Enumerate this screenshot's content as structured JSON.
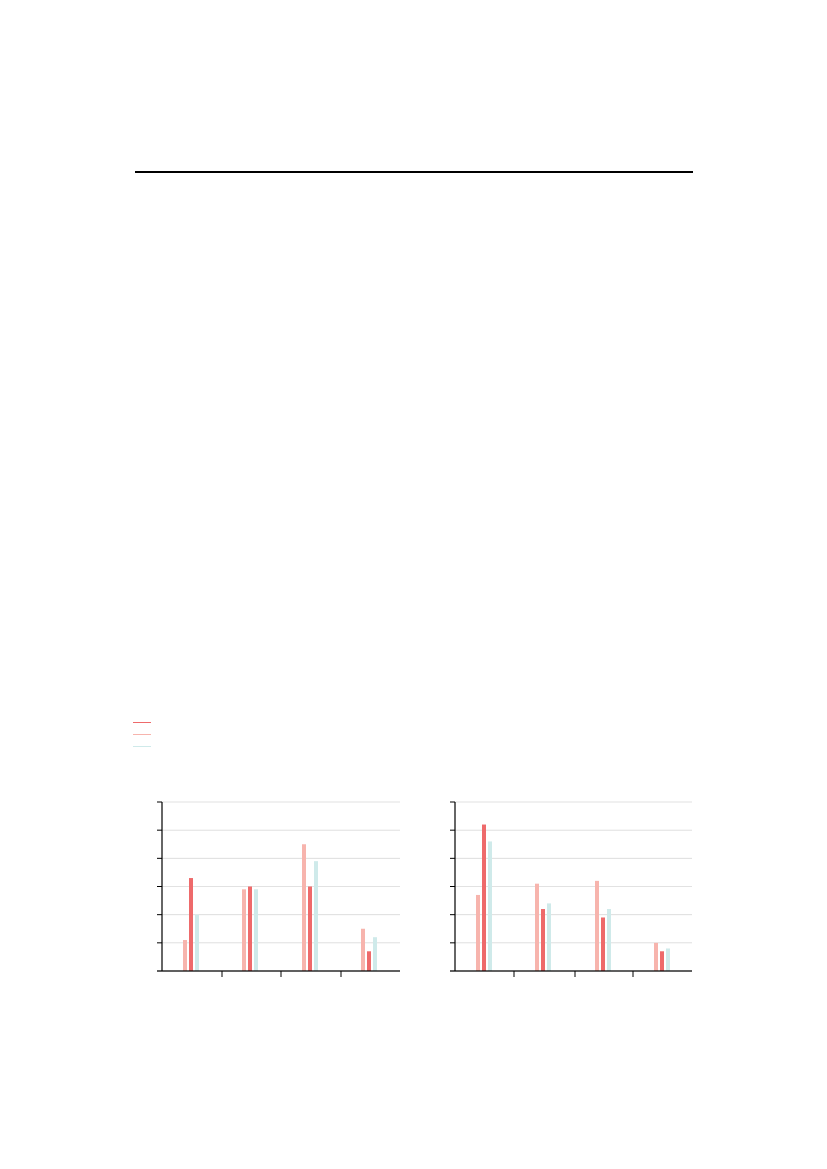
{
  "colors": {
    "series_1": "#ee6a6b",
    "series_2": "#f7b4ad",
    "series_3": "#cfeaea",
    "grid": "#d9d9d9",
    "axis": "#000000"
  },
  "legend": {
    "placement": "top-left",
    "entries": [
      {
        "color": "#ee6a6b"
      },
      {
        "color": "#f7b4ad"
      },
      {
        "color": "#cfeaea"
      }
    ]
  },
  "chart_data": [
    {
      "type": "bar",
      "grid": true,
      "ylim": [
        0,
        6
      ],
      "series": [
        {
          "color": "#f7b4ad",
          "values": [
            1.1,
            2.9,
            4.5,
            1.5
          ]
        },
        {
          "color": "#ee6a6b",
          "values": [
            3.3,
            3.0,
            3.0,
            0.7
          ]
        },
        {
          "color": "#cfeaea",
          "values": [
            2.0,
            2.9,
            3.9,
            1.2
          ]
        }
      ]
    },
    {
      "type": "bar",
      "grid": true,
      "ylim": [
        0,
        6
      ],
      "series": [
        {
          "color": "#f7b4ad",
          "values": [
            2.7,
            3.1,
            3.2,
            1.0
          ]
        },
        {
          "color": "#ee6a6b",
          "values": [
            5.2,
            2.2,
            1.9,
            0.7
          ]
        },
        {
          "color": "#cfeaea",
          "values": [
            4.6,
            2.4,
            2.2,
            0.8
          ]
        }
      ]
    }
  ]
}
